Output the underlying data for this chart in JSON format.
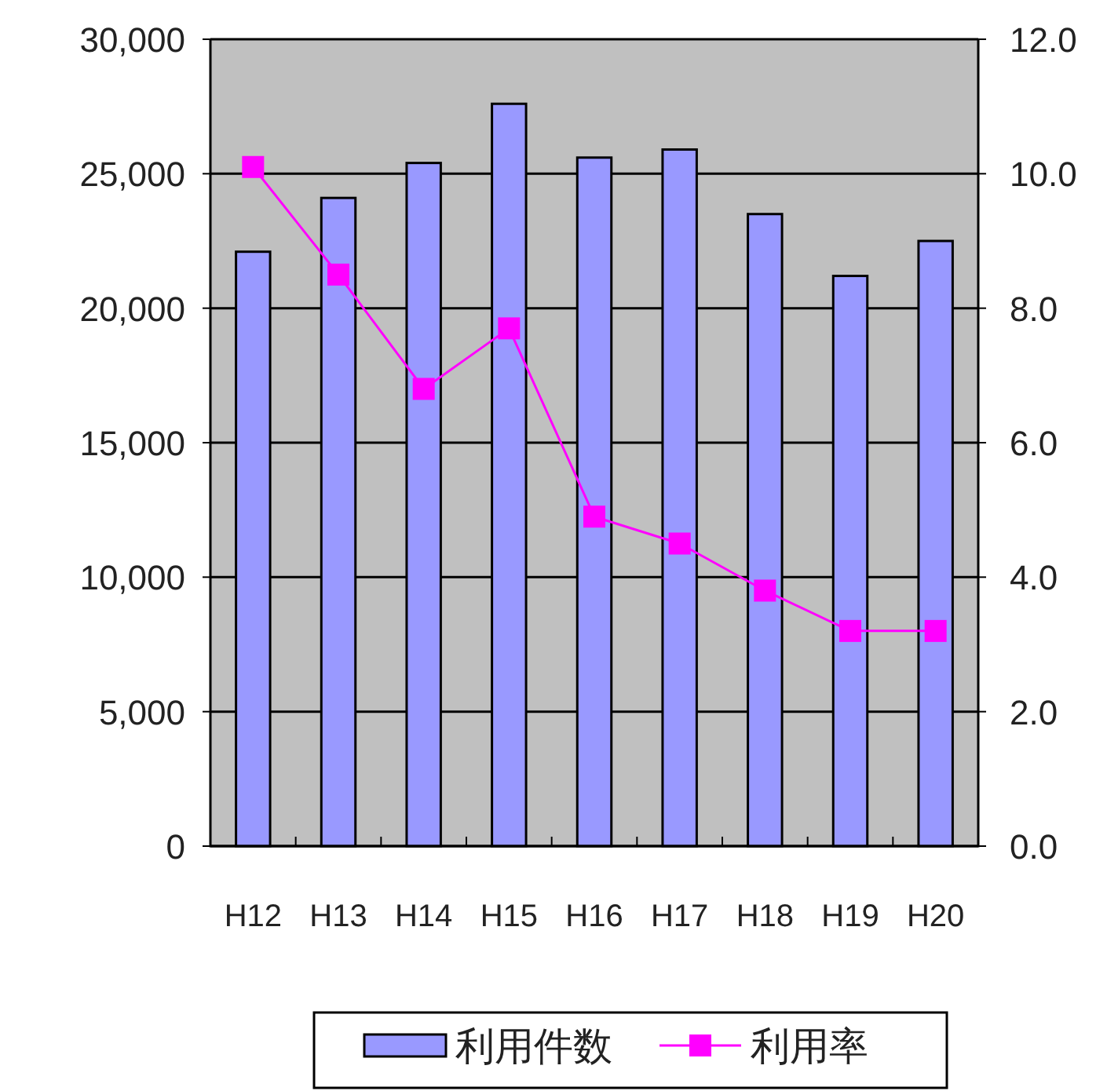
{
  "chart_data": {
    "type": "bar",
    "categories": [
      "H12",
      "H13",
      "H14",
      "H15",
      "H16",
      "H17",
      "H18",
      "H19",
      "H20"
    ],
    "series": [
      {
        "name": "利用件数",
        "color": "#9999ff",
        "values": [
          22100,
          24100,
          25400,
          27600,
          25600,
          25900,
          23500,
          21200,
          22500
        ]
      },
      {
        "name": "利用率",
        "type": "line",
        "axis": "y2",
        "color": "#ff00ff",
        "values": [
          10.1,
          8.5,
          6.8,
          7.7,
          4.9,
          4.5,
          3.8,
          3.2,
          3.2
        ]
      }
    ],
    "ylim": [
      0,
      30000
    ],
    "yticks": [
      0,
      {
        "value": 5000,
        "label": "5,000"
      },
      {
        "value": 10000,
        "label": "10,000"
      },
      {
        "value": 15000,
        "label": "15,000"
      },
      {
        "value": 20000,
        "label": "20,000"
      },
      {
        "value": 25000,
        "label": "25,000"
      },
      {
        "value": 30000,
        "label": "30,000"
      }
    ],
    "y2lim": [
      0,
      12
    ],
    "y2ticks": [
      {
        "value": 0,
        "label": "0.0"
      },
      {
        "value": 2,
        "label": "2.0"
      },
      {
        "value": 4,
        "label": "4.0"
      },
      {
        "value": 6,
        "label": "6.0"
      },
      {
        "value": 8,
        "label": "8.0"
      },
      {
        "value": 10,
        "label": "10.0"
      },
      {
        "value": 12,
        "label": "12.0"
      }
    ],
    "grid": "y",
    "legend": "bottom",
    "marker": "square"
  }
}
